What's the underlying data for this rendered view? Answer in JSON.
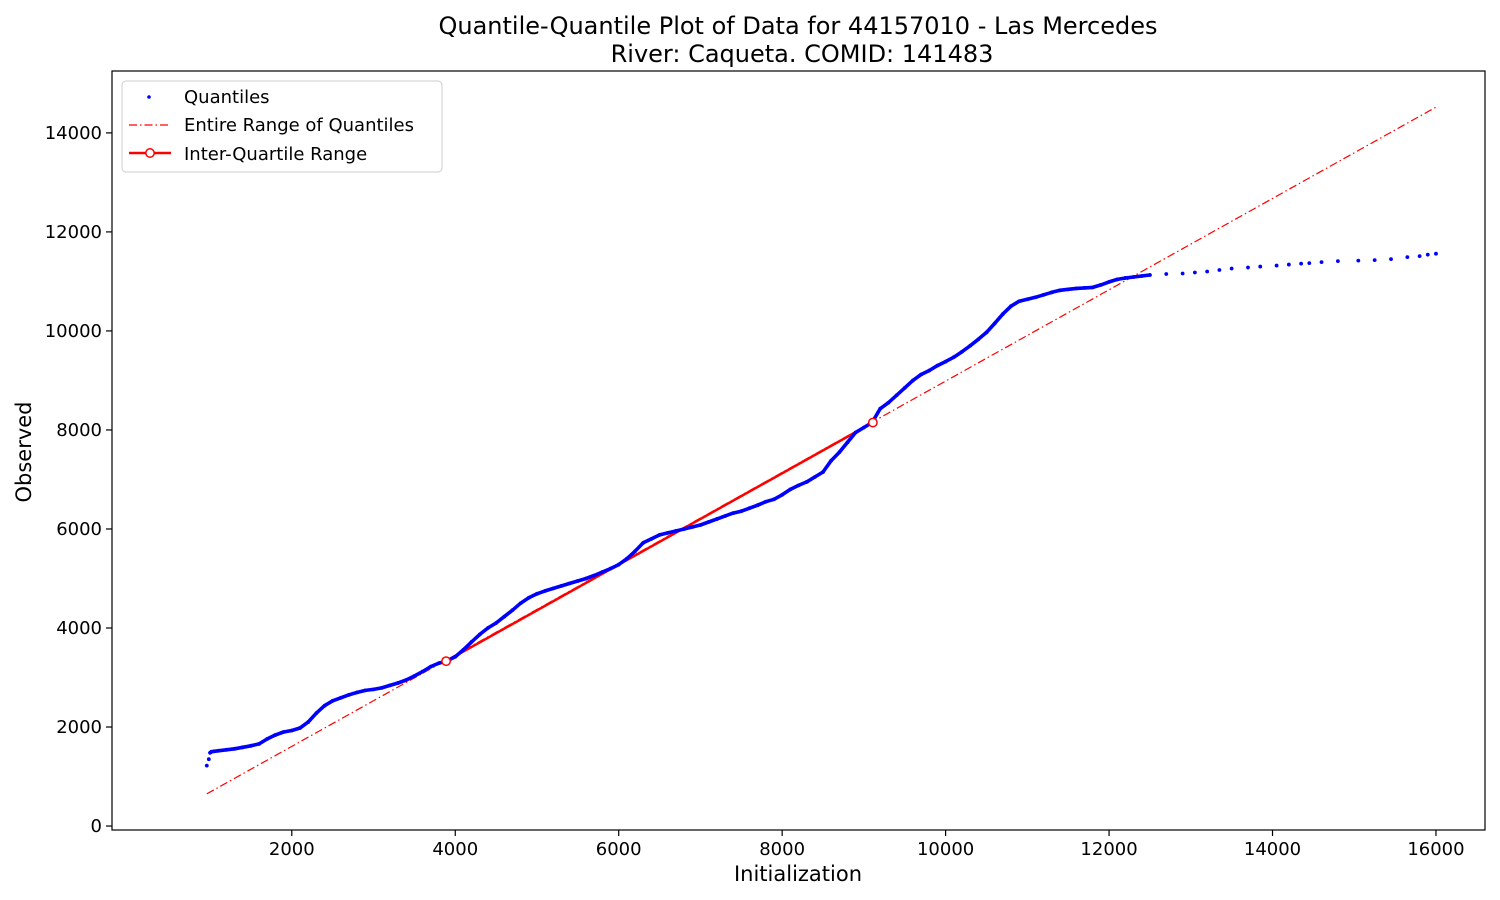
{
  "chart_data": {
    "type": "scatter",
    "title": "Quantile-Quantile Plot of Data for 44157010 - Las Mercedes",
    "subtitle": "River: Caqueta. COMID: 141483",
    "xlabel": "Initialization",
    "ylabel": "Observed",
    "xlim": [
      -200,
      16600
    ],
    "ylim": [
      -80,
      15250
    ],
    "xticks": [
      2000,
      4000,
      6000,
      8000,
      10000,
      12000,
      14000,
      16000
    ],
    "yticks": [
      0,
      2000,
      4000,
      6000,
      8000,
      10000,
      12000,
      14000
    ],
    "grid": false,
    "legend_position": "top-left",
    "colors": {
      "quantiles": "#0000ff",
      "reference": "#ff0000"
    },
    "series": [
      {
        "name": "Quantiles",
        "style": "points",
        "x": [
          960,
          985,
          1000,
          1015,
          1050,
          1100,
          1200,
          1300,
          1400,
          1500,
          1600,
          1700,
          1800,
          1900,
          2000,
          2100,
          2200,
          2300,
          2400,
          2500,
          2600,
          2700,
          2800,
          2900,
          3000,
          3100,
          3200,
          3300,
          3400,
          3500,
          3600,
          3700,
          3800,
          3888,
          4000,
          4100,
          4200,
          4300,
          4400,
          4500,
          4600,
          4700,
          4800,
          4900,
          5000,
          5100,
          5200,
          5300,
          5400,
          5500,
          5600,
          5700,
          5800,
          5900,
          6000,
          6100,
          6200,
          6300,
          6400,
          6500,
          6600,
          6700,
          6800,
          6900,
          7000,
          7100,
          7200,
          7300,
          7400,
          7500,
          7600,
          7700,
          7800,
          7900,
          8000,
          8100,
          8200,
          8300,
          8400,
          8500,
          8600,
          8700,
          8800,
          8900,
          9000,
          9100,
          9200,
          9300,
          9400,
          9500,
          9600,
          9700,
          9800,
          9900,
          10000,
          10100,
          10200,
          10300,
          10400,
          10500,
          10600,
          10700,
          10800,
          10900,
          11000,
          11100,
          11200,
          11300,
          11400,
          11500,
          11600,
          11700,
          11800,
          11900,
          12000,
          12100,
          12200,
          12300,
          12400,
          12500,
          12700,
          12900,
          13050,
          13200,
          13350,
          13500,
          13700,
          13850,
          14050,
          14200,
          14350,
          14450,
          14600,
          14800,
          15050,
          15250,
          15450,
          15650,
          15800,
          15900,
          16000
        ],
        "y": [
          1220,
          1350,
          1480,
          1500,
          1510,
          1520,
          1540,
          1560,
          1590,
          1620,
          1660,
          1760,
          1840,
          1900,
          1930,
          1980,
          2100,
          2280,
          2430,
          2530,
          2590,
          2650,
          2700,
          2740,
          2760,
          2790,
          2840,
          2890,
          2950,
          3030,
          3120,
          3220,
          3290,
          3330,
          3420,
          3560,
          3720,
          3870,
          4000,
          4100,
          4230,
          4360,
          4500,
          4610,
          4690,
          4750,
          4800,
          4850,
          4900,
          4950,
          5000,
          5060,
          5130,
          5200,
          5280,
          5400,
          5550,
          5720,
          5800,
          5880,
          5920,
          5960,
          6000,
          6040,
          6080,
          6140,
          6200,
          6260,
          6320,
          6360,
          6420,
          6480,
          6550,
          6600,
          6690,
          6800,
          6880,
          6950,
          7050,
          7150,
          7380,
          7550,
          7750,
          7950,
          8050,
          8150,
          8430,
          8550,
          8700,
          8850,
          9000,
          9120,
          9200,
          9300,
          9380,
          9470,
          9580,
          9700,
          9830,
          9970,
          10150,
          10340,
          10500,
          10600,
          10640,
          10680,
          10730,
          10780,
          10820,
          10840,
          10860,
          10870,
          10880,
          10930,
          10990,
          11040,
          11070,
          11090,
          11110,
          11130,
          11150,
          11160,
          11180,
          11200,
          11230,
          11260,
          11280,
          11300,
          11320,
          11340,
          11360,
          11370,
          11390,
          11410,
          11420,
          11430,
          11450,
          11490,
          11510,
          11540,
          11560
        ]
      },
      {
        "name": "Entire Range of Quantiles",
        "style": "dashdot-line",
        "x": [
          960,
          16000
        ],
        "y": [
          650,
          14520
        ]
      },
      {
        "name": "Inter-Quartile Range",
        "style": "line-markers",
        "x": [
          3888,
          9110
        ],
        "y": [
          3330,
          8150
        ]
      }
    ]
  }
}
